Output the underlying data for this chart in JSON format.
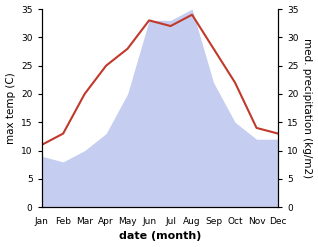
{
  "months": [
    "Jan",
    "Feb",
    "Mar",
    "Apr",
    "May",
    "Jun",
    "Jul",
    "Aug",
    "Sep",
    "Oct",
    "Nov",
    "Dec"
  ],
  "temperature": [
    11,
    13,
    20,
    25,
    28,
    33,
    32,
    34,
    28,
    22,
    14,
    13
  ],
  "precipitation": [
    9,
    8,
    10,
    13,
    20,
    33,
    33,
    35,
    22,
    15,
    12,
    12
  ],
  "temp_color": "#c0392b",
  "precip_color": "#c5cef0",
  "background_color": "#ffffff",
  "ylabel_left": "max temp (C)",
  "ylabel_right": "med. precipitation (kg/m2)",
  "xlabel": "date (month)",
  "ylim": [
    0,
    35
  ],
  "yticks": [
    0,
    5,
    10,
    15,
    20,
    25,
    30,
    35
  ],
  "label_fontsize": 7.5,
  "tick_fontsize": 6.5,
  "xlabel_fontsize": 8,
  "linewidth": 1.5
}
